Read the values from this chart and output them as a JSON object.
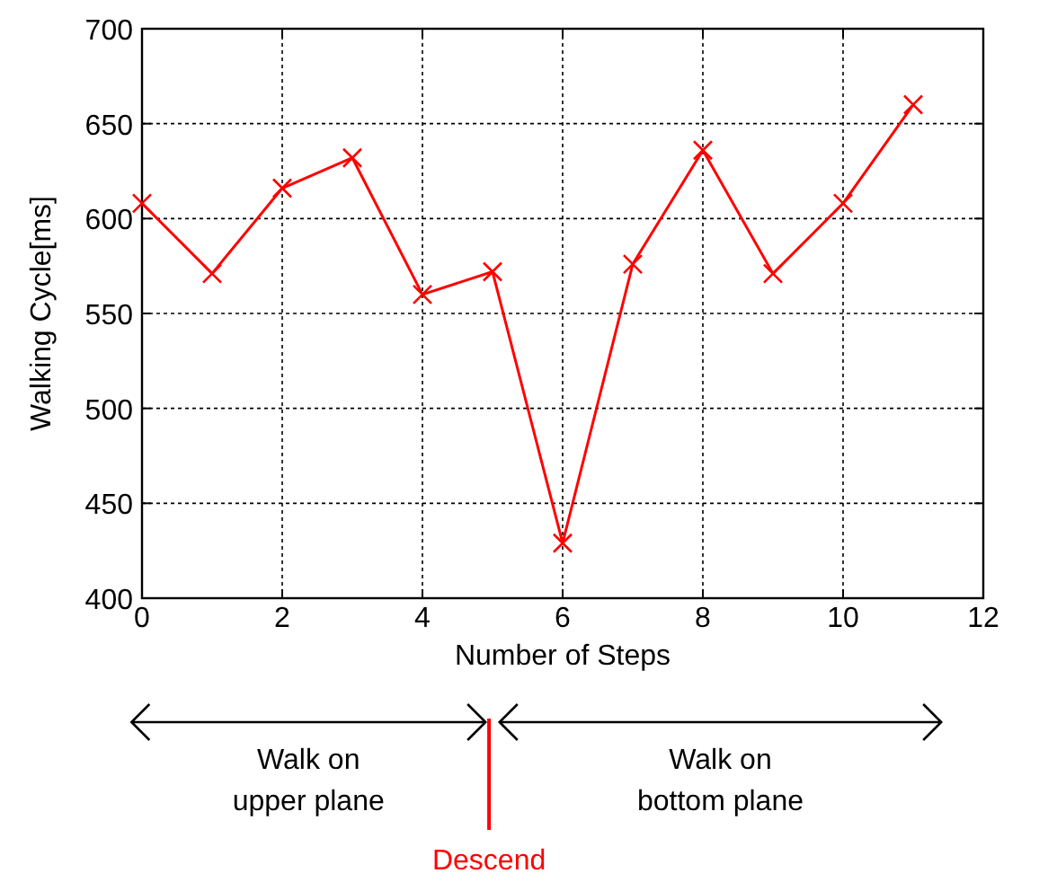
{
  "chart_data": {
    "type": "line",
    "xlabel": "Number of Steps",
    "ylabel": "Walking Cycle[ms]",
    "x": [
      0,
      1,
      2,
      3,
      4,
      5,
      6,
      7,
      8,
      9,
      10,
      11
    ],
    "series": [
      {
        "color": "#ff0000",
        "values": [
          608,
          571,
          616,
          632,
          560,
          572,
          429,
          576,
          636,
          571,
          608,
          660
        ]
      }
    ],
    "xlim": [
      0,
      12
    ],
    "xticks": [
      0,
      2,
      4,
      6,
      8,
      10,
      12
    ],
    "ylim": [
      400,
      700
    ],
    "yticks": [
      400,
      450,
      500,
      550,
      600,
      650,
      700
    ],
    "grid": true,
    "marker": "cross",
    "line_style": "solid",
    "annotations": [
      "Walk on upper plane",
      "Walk on bottom plane",
      "Descend"
    ]
  }
}
